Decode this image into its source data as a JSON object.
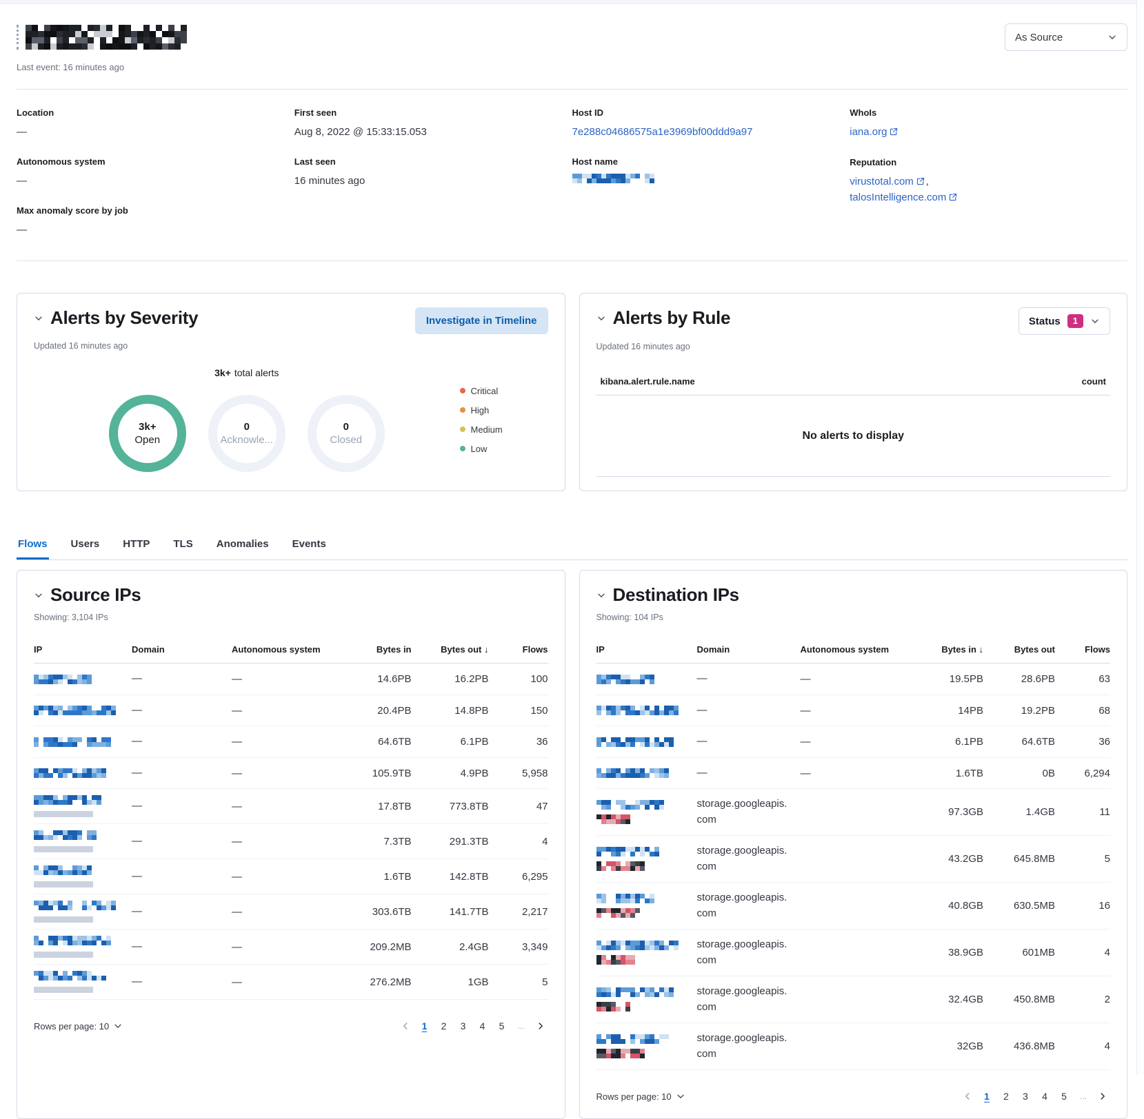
{
  "colors": {
    "badge_pink": "#CE2F7E",
    "ring_green": "#54B399",
    "link_blue": "#2b64c5",
    "tab_blue": "#0b6ccb"
  },
  "header": {
    "title_redacted": "[redacted IP]",
    "last_event": "Last event: 16 minutes ago",
    "view_mode": "As Source"
  },
  "overview": {
    "location": {
      "label": "Location",
      "value": "—"
    },
    "autonomous_system": {
      "label": "Autonomous system",
      "value": "—"
    },
    "max_anomaly": {
      "label": "Max anomaly score by job",
      "value": "—"
    },
    "first_seen": {
      "label": "First seen",
      "value": "Aug 8, 2022 @ 15:33:15.053"
    },
    "last_seen": {
      "label": "Last seen",
      "value": "16 minutes ago"
    },
    "host_id": {
      "label": "Host ID",
      "value": "7e288c04686575a1e3969bf00ddd9a97"
    },
    "host_name": {
      "label": "Host name",
      "value": "[redacted]"
    },
    "whois": {
      "label": "WhoIs",
      "value": "iana.org"
    },
    "reputation": {
      "label": "Reputation",
      "links": [
        "virustotal.com",
        "talosIntelligence.com"
      ],
      "separator": ","
    }
  },
  "alerts_severity": {
    "title": "Alerts by Severity",
    "updated": "Updated 16 minutes ago",
    "investigate_button": "Investigate in Timeline",
    "total_value": "3k+",
    "total_label": "total alerts",
    "donuts": [
      {
        "value": "3k+",
        "label": "Open",
        "active": true
      },
      {
        "value": "0",
        "label": "Acknowle...",
        "active": false
      },
      {
        "value": "0",
        "label": "Closed",
        "active": false
      }
    ],
    "legend": [
      {
        "label": "Critical",
        "color": "#E7664C"
      },
      {
        "label": "High",
        "color": "#E59145"
      },
      {
        "label": "Medium",
        "color": "#D6BF57"
      },
      {
        "label": "Low",
        "color": "#54B399"
      }
    ]
  },
  "alerts_rule": {
    "title": "Alerts by Rule",
    "updated": "Updated 16 minutes ago",
    "status_label": "Status",
    "status_count": "1",
    "column_name": "kibana.alert.rule.name",
    "column_count": "count",
    "empty_message": "No alerts to display"
  },
  "tabs": [
    {
      "label": "Flows",
      "active": true
    },
    {
      "label": "Users",
      "active": false
    },
    {
      "label": "HTTP",
      "active": false
    },
    {
      "label": "TLS",
      "active": false
    },
    {
      "label": "Anomalies",
      "active": false
    },
    {
      "label": "Events",
      "active": false
    }
  ],
  "source_ips": {
    "title": "Source IPs",
    "showing": "Showing: 3,104 IPs",
    "columns": [
      "IP",
      "Domain",
      "Autonomous system",
      "Bytes in",
      "Bytes out",
      "Flows"
    ],
    "sorted_by": "Bytes out",
    "sort_direction": "desc",
    "rows": [
      {
        "ip": "[redacted]",
        "domain": "—",
        "autonomous_system": "—",
        "bytes_in": "14.6PB",
        "bytes_out": "16.2PB",
        "flows": "100"
      },
      {
        "ip": "[redacted]",
        "domain": "—",
        "autonomous_system": "—",
        "bytes_in": "20.4PB",
        "bytes_out": "14.8PB",
        "flows": "150"
      },
      {
        "ip": "[redacted]",
        "domain": "—",
        "autonomous_system": "—",
        "bytes_in": "64.6TB",
        "bytes_out": "6.1PB",
        "flows": "36"
      },
      {
        "ip": "[redacted]",
        "domain": "—",
        "autonomous_system": "—",
        "bytes_in": "105.9TB",
        "bytes_out": "4.9PB",
        "flows": "5,958"
      },
      {
        "ip": "[redacted]",
        "domain": "—",
        "autonomous_system": "—",
        "bytes_in": "17.8TB",
        "bytes_out": "773.8TB",
        "flows": "47",
        "extra_redacted_line": true
      },
      {
        "ip": "[redacted]",
        "domain": "—",
        "autonomous_system": "—",
        "bytes_in": "7.3TB",
        "bytes_out": "291.3TB",
        "flows": "4",
        "extra_redacted_line": true
      },
      {
        "ip": "[redacted]",
        "domain": "—",
        "autonomous_system": "—",
        "bytes_in": "1.6TB",
        "bytes_out": "142.8TB",
        "flows": "6,295",
        "extra_redacted_line": true
      },
      {
        "ip": "[redacted]",
        "domain": "—",
        "autonomous_system": "—",
        "bytes_in": "303.6TB",
        "bytes_out": "141.7TB",
        "flows": "2,217",
        "extra_redacted_line": true
      },
      {
        "ip": "[redacted]",
        "domain": "—",
        "autonomous_system": "—",
        "bytes_in": "209.2MB",
        "bytes_out": "2.4GB",
        "flows": "3,349",
        "extra_redacted_line": true
      },
      {
        "ip": "[redacted]",
        "domain": "—",
        "autonomous_system": "—",
        "bytes_in": "276.2MB",
        "bytes_out": "1GB",
        "flows": "5",
        "extra_redacted_line": true
      }
    ],
    "rows_per_page_label": "Rows per page: 10",
    "pages": [
      "1",
      "2",
      "3",
      "4",
      "5"
    ],
    "active_page": "1",
    "ellipsis": "..."
  },
  "destination_ips": {
    "title": "Destination IPs",
    "showing": "Showing: 104 IPs",
    "columns": [
      "IP",
      "Domain",
      "Autonomous system",
      "Bytes in",
      "Bytes out",
      "Flows"
    ],
    "sorted_by": "Bytes in",
    "sort_direction": "desc",
    "rows": [
      {
        "ip": "[redacted]",
        "domain": "—",
        "autonomous_system": "—",
        "bytes_in": "19.5PB",
        "bytes_out": "28.6PB",
        "flows": "63"
      },
      {
        "ip": "[redacted]",
        "domain": "—",
        "autonomous_system": "—",
        "bytes_in": "14PB",
        "bytes_out": "19.2PB",
        "flows": "68"
      },
      {
        "ip": "[redacted]",
        "domain": "—",
        "autonomous_system": "—",
        "bytes_in": "6.1PB",
        "bytes_out": "64.6TB",
        "flows": "36"
      },
      {
        "ip": "[redacted]",
        "domain": "—",
        "autonomous_system": "—",
        "bytes_in": "1.6TB",
        "bytes_out": "0B",
        "flows": "6,294"
      },
      {
        "ip": "[redacted]",
        "domain": "storage.googleapis.com",
        "autonomous_system": "",
        "bytes_in": "97.3GB",
        "bytes_out": "1.4GB",
        "flows": "11",
        "two_line": true
      },
      {
        "ip": "[redacted]",
        "domain": "storage.googleapis.com",
        "autonomous_system": "",
        "bytes_in": "43.2GB",
        "bytes_out": "645.8MB",
        "flows": "5",
        "two_line": true
      },
      {
        "ip": "[redacted]",
        "domain": "storage.googleapis.com",
        "autonomous_system": "",
        "bytes_in": "40.8GB",
        "bytes_out": "630.5MB",
        "flows": "16",
        "two_line": true
      },
      {
        "ip": "[redacted]",
        "domain": "storage.googleapis.com",
        "autonomous_system": "",
        "bytes_in": "38.9GB",
        "bytes_out": "601MB",
        "flows": "4",
        "two_line": true
      },
      {
        "ip": "[redacted]",
        "domain": "storage.googleapis.com",
        "autonomous_system": "",
        "bytes_in": "32.4GB",
        "bytes_out": "450.8MB",
        "flows": "2",
        "two_line": true
      },
      {
        "ip": "[redacted]",
        "domain": "storage.googleapis.com",
        "autonomous_system": "",
        "bytes_in": "32GB",
        "bytes_out": "436.8MB",
        "flows": "4",
        "two_line": true
      }
    ],
    "rows_per_page_label": "Rows per page: 10",
    "pages": [
      "1",
      "2",
      "3",
      "4",
      "5"
    ],
    "active_page": "1",
    "ellipsis": "..."
  }
}
